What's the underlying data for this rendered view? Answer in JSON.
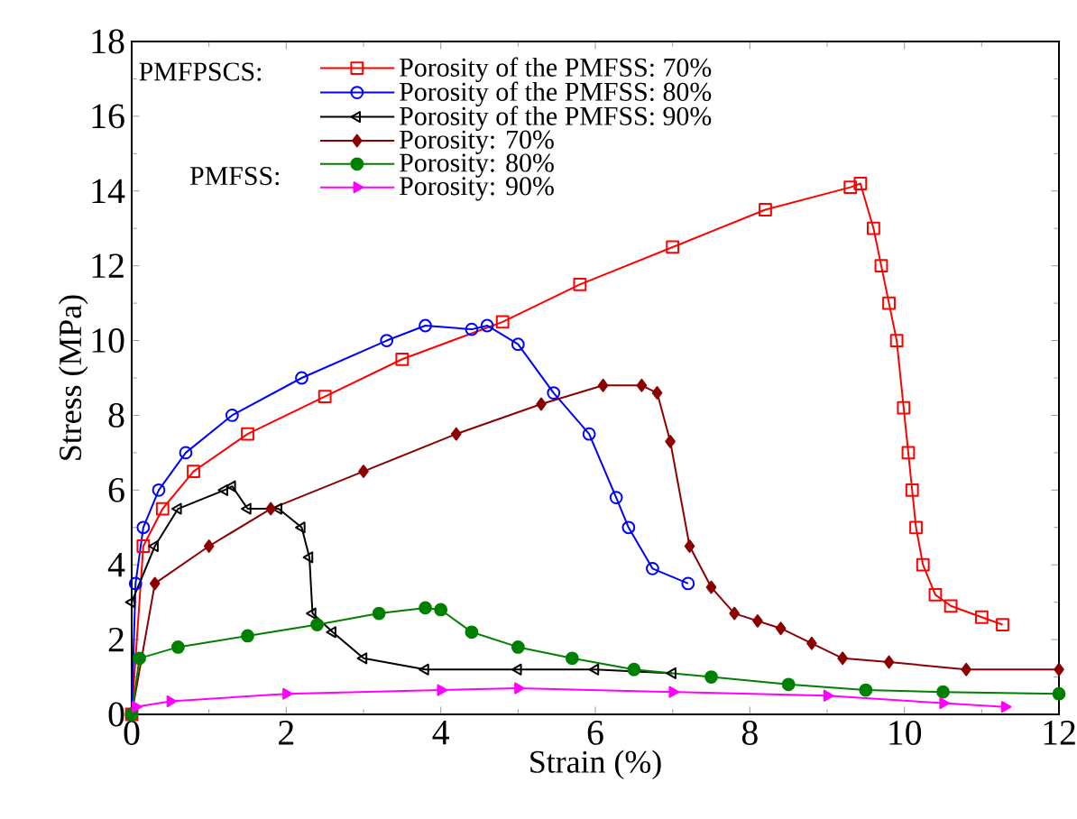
{
  "chart_data": {
    "type": "line",
    "xlabel": "Strain (%)",
    "ylabel": "Stress (MPa)",
    "xlim": [
      0,
      12
    ],
    "ylim": [
      0,
      18
    ],
    "xticks": [
      0,
      2,
      4,
      6,
      8,
      10,
      12
    ],
    "yticks": [
      0,
      2,
      4,
      6,
      8,
      10,
      12,
      14,
      16,
      18
    ],
    "grid": false,
    "legend": "top left",
    "line_style": "solid",
    "annotations": [
      "PMFPSCS:",
      "PMFSS:"
    ],
    "series": [
      {
        "name": "Porosity of the PMFSS: 70%",
        "color": "#ff0000",
        "marker": "square",
        "x": [
          0,
          0.15,
          0.4,
          0.8,
          1.5,
          2.5,
          3.5,
          4.8,
          5.8,
          7.0,
          8.2,
          9.3,
          9.43,
          9.6,
          9.7,
          9.8,
          9.9,
          9.99,
          10.05,
          10.1,
          10.15,
          10.24,
          10.4,
          10.6,
          11.0,
          11.27
        ],
        "values": [
          0,
          4.5,
          5.5,
          6.5,
          7.5,
          8.5,
          9.5,
          10.5,
          11.5,
          12.5,
          13.5,
          14.1,
          14.2,
          13.0,
          12.0,
          11.0,
          10.0,
          8.2,
          7.0,
          6.0,
          5.0,
          4.0,
          3.2,
          2.9,
          2.6,
          2.4
        ]
      },
      {
        "name": "Porosity of the PMFSS: 80%",
        "color": "#0000ff",
        "marker": "circle",
        "x": [
          0,
          0.05,
          0.15,
          0.35,
          0.7,
          1.3,
          2.2,
          3.3,
          3.8,
          4.4,
          4.6,
          5.0,
          5.46,
          5.92,
          6.27,
          6.43,
          6.74,
          7.2
        ],
        "values": [
          0,
          3.5,
          5.0,
          6.0,
          7.0,
          8.0,
          9.0,
          10.0,
          10.4,
          10.3,
          10.4,
          9.9,
          8.6,
          7.5,
          5.8,
          5.0,
          3.9,
          3.5
        ]
      },
      {
        "name": "Porosity of the PMFSS: 90%",
        "color": "#000000",
        "marker": "triangle",
        "x": [
          0,
          0.3,
          0.6,
          1.2,
          1.3,
          1.5,
          1.9,
          2.2,
          2.3,
          2.34,
          2.6,
          3.0,
          3.8,
          5.0,
          6.0,
          7.0
        ],
        "values": [
          3.0,
          4.5,
          5.5,
          6.0,
          6.1,
          5.5,
          5.5,
          5.0,
          4.2,
          2.7,
          2.2,
          1.5,
          1.2,
          1.2,
          1.2,
          1.1
        ]
      },
      {
        "name": "Porosity: 70%",
        "color": "#8b0000",
        "marker": "diamond",
        "x": [
          0,
          0.3,
          1.0,
          1.8,
          3.0,
          4.2,
          5.3,
          6.1,
          6.6,
          6.8,
          6.97,
          7.22,
          7.5,
          7.8,
          8.1,
          8.4,
          8.8,
          9.2,
          9.8,
          10.8,
          12.0
        ],
        "values": [
          0,
          3.5,
          4.5,
          5.5,
          6.5,
          7.5,
          8.3,
          8.8,
          8.8,
          8.6,
          7.3,
          4.5,
          3.4,
          2.7,
          2.5,
          2.3,
          1.9,
          1.5,
          1.4,
          1.2,
          1.2
        ]
      },
      {
        "name": "Porosity: 80%",
        "color": "#008000",
        "marker": "circle",
        "x": [
          0,
          0.1,
          0.6,
          1.5,
          2.4,
          3.2,
          3.8,
          4.0,
          4.4,
          5.0,
          5.7,
          6.5,
          7.5,
          8.5,
          9.5,
          10.5,
          12.0
        ],
        "values": [
          0,
          1.5,
          1.8,
          2.1,
          2.4,
          2.7,
          2.85,
          2.8,
          2.2,
          1.8,
          1.5,
          1.2,
          1.0,
          0.8,
          0.65,
          0.6,
          0.55
        ]
      },
      {
        "name": "Porosity: 90%",
        "color": "#ff00ff",
        "marker": "triangle",
        "x": [
          0.05,
          0.5,
          2.0,
          4.0,
          5.0,
          7.0,
          9.0,
          10.5,
          11.3
        ],
        "values": [
          0.2,
          0.35,
          0.55,
          0.65,
          0.7,
          0.6,
          0.5,
          0.3,
          0.2
        ]
      }
    ]
  }
}
